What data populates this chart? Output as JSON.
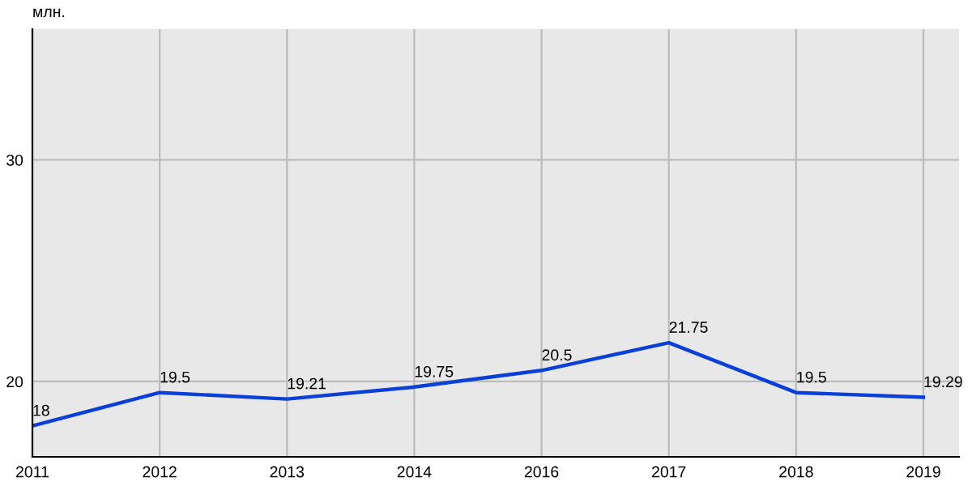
{
  "chart_data": {
    "type": "line",
    "ylabel": "млн.",
    "categories": [
      "2011",
      "2012",
      "2013",
      "2014",
      "2016",
      "2017",
      "2018",
      "2019"
    ],
    "series": [
      {
        "color": "#0a3fd8",
        "values": [
          18,
          19.5,
          19.21,
          19.75,
          20.5,
          21.75,
          19.5,
          19.29
        ]
      }
    ],
    "data_labels": true,
    "ylim": [
      16.6,
      35.9
    ],
    "yticks": [
      20,
      30
    ],
    "grid": true,
    "marker": "none",
    "line_style": "solid"
  }
}
